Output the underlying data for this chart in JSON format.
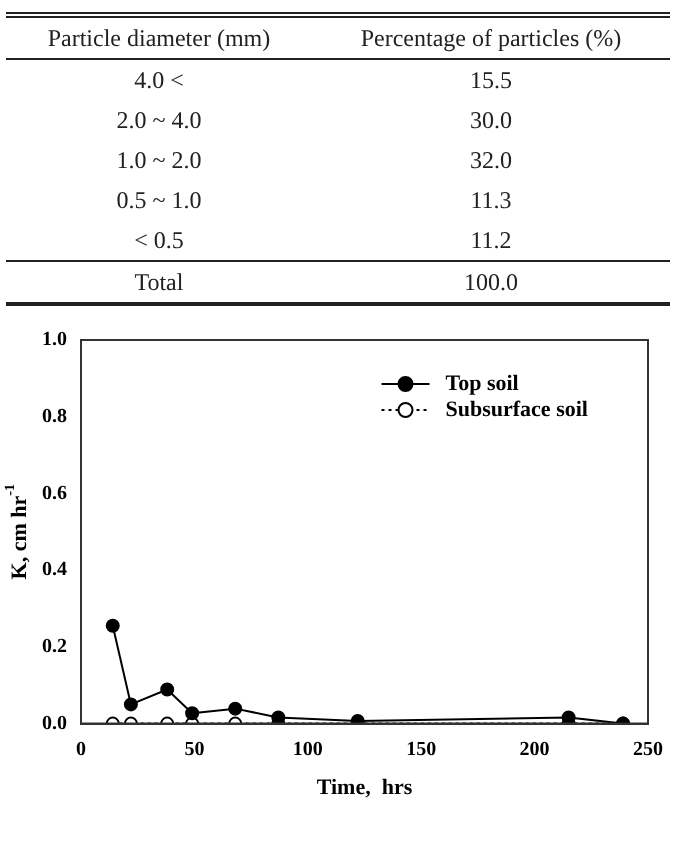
{
  "chart_data": [
    {
      "type": "other",
      "annotations": [
        "Particle diameter (mm)",
        "Percentage of particles (%)",
        "4.0 <",
        "15.5",
        "2.0 ~ 4.0",
        "30.0",
        "1.0 ~ 2.0",
        "32.0",
        "0.5 ~ 1.0",
        "11.3",
        "< 0.5",
        "11.2",
        "Total",
        "100.0"
      ]
    },
    {
      "type": "line",
      "xlabel": "Time,  hrs",
      "ylabel": "K, cm hr$^{-1}$",
      "xlim": [
        0,
        250
      ],
      "xticks": [
        0,
        50,
        100,
        150,
        200,
        250
      ],
      "ylim": [
        0,
        1
      ],
      "yticks": [
        {
          "value": 0,
          "label": "0.0"
        },
        {
          "value": 0.2,
          "label": "0.2"
        },
        {
          "value": 0.4,
          "label": "0.4"
        },
        {
          "value": 0.6,
          "label": "0.6"
        },
        {
          "value": 0.8,
          "label": "0.8"
        },
        {
          "value": 1,
          "label": "1.0"
        }
      ],
      "grid": false,
      "legend": "top right",
      "marker": "circle",
      "series": [
        {
          "name": "Top soil",
          "color": "#000000",
          "line_style": "solid",
          "x": [
            14,
            22,
            38,
            49,
            68,
            87,
            122,
            215,
            239
          ],
          "values": [
            0.255,
            0.05,
            0.089,
            0.027,
            0.039,
            0.016,
            0.007,
            0.016,
            0
          ]
        },
        {
          "name": "Subsurface soil",
          "color": "#000000",
          "line_style": "dotted",
          "x": [
            14,
            22,
            38,
            49,
            68,
            87,
            122,
            215,
            239
          ],
          "values": [
            0,
            0,
            0,
            0,
            0,
            0,
            0,
            0,
            0
          ]
        }
      ]
    }
  ]
}
